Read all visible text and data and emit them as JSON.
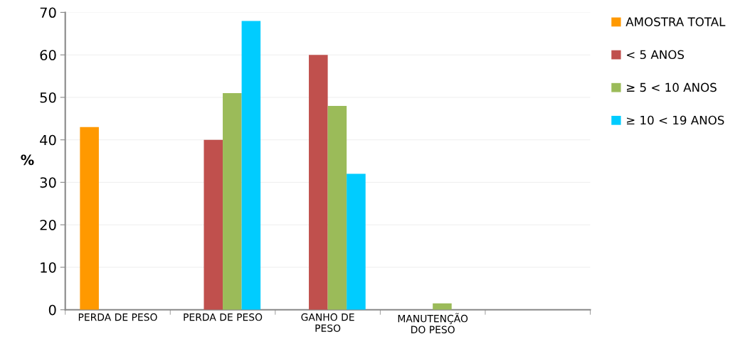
{
  "chart_data": {
    "type": "bar",
    "ylabel": "%",
    "categories": [
      "PERDA DE PESO",
      "PERDA DE PESO",
      "GANHO DE\nPESO",
      "MANUTENÇÃO\nDO PESO",
      null
    ],
    "series": [
      {
        "name": "AMOSTRA TOTAL",
        "color": "#ff9900",
        "values": [
          43,
          null,
          null,
          null,
          null
        ]
      },
      {
        "name": "< 5 ANOS",
        "color": "#c0504d",
        "values": [
          null,
          40,
          60,
          null,
          null
        ]
      },
      {
        "name": "≥ 5 < 10 ANOS",
        "color": "#9bbb59",
        "values": [
          null,
          51,
          48,
          1.5,
          null
        ]
      },
      {
        "name": "≥ 10 < 19 ANOS",
        "color": "#00ccff",
        "values": [
          null,
          68,
          32,
          null,
          null
        ]
      }
    ],
    "ylim": [
      0,
      70
    ],
    "yticks": [
      0,
      10,
      20,
      30,
      40,
      50,
      60,
      70
    ],
    "grid": "y",
    "legend": "top right"
  }
}
